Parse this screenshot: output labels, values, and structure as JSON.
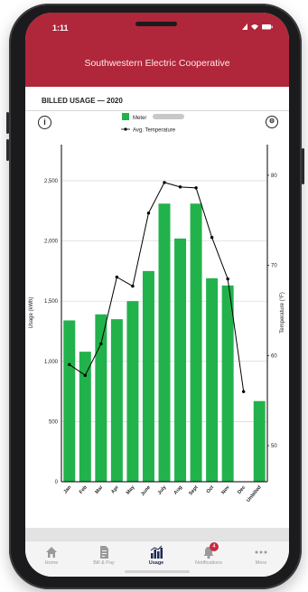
{
  "status": {
    "time": "1:11"
  },
  "header": {
    "title": "Southwestern Electric Cooperative"
  },
  "section": {
    "title": "BILLED USAGE — 2020"
  },
  "legend": {
    "meter": "Meter",
    "temp": "Avg. Temperature"
  },
  "chart_data": {
    "type": "bar",
    "categories": [
      "Jan",
      "Feb",
      "Mar",
      "Apr",
      "May",
      "June",
      "July",
      "Aug",
      "Sept",
      "Oct",
      "Nov",
      "Dec",
      "Unbilled"
    ],
    "series": [
      {
        "name": "Meter",
        "values": [
          1340,
          1080,
          1390,
          1350,
          1500,
          1750,
          2310,
          2020,
          2310,
          1690,
          1630,
          0,
          670
        ],
        "color": "#22b24c"
      },
      {
        "name": "Avg. Temperature",
        "values": [
          59,
          57.8,
          61.3,
          68.7,
          67.7,
          75.8,
          79.2,
          78.7,
          78.6,
          73.1,
          68.5,
          56,
          null
        ],
        "color": "#000000"
      }
    ],
    "ylabel": "Usage (kWh)",
    "y2label": "Temperature (°F)",
    "ylim": [
      0,
      2800
    ],
    "y2lim": [
      46,
      83.4
    ],
    "yticks": [
      "0",
      "500",
      "1,000",
      "1,500",
      "2,000",
      "2,500"
    ],
    "y2ticks": [
      "50",
      "60",
      "70",
      "80"
    ],
    "grid": true,
    "legend_position": "top"
  },
  "tabs": [
    {
      "label": "Home",
      "icon": "home-icon"
    },
    {
      "label": "Bill & Pay",
      "icon": "bill-icon"
    },
    {
      "label": "Usage",
      "icon": "usage-icon"
    },
    {
      "label": "Notifications",
      "icon": "bell-icon",
      "badge": "4"
    },
    {
      "label": "More",
      "icon": "more-icon"
    }
  ]
}
